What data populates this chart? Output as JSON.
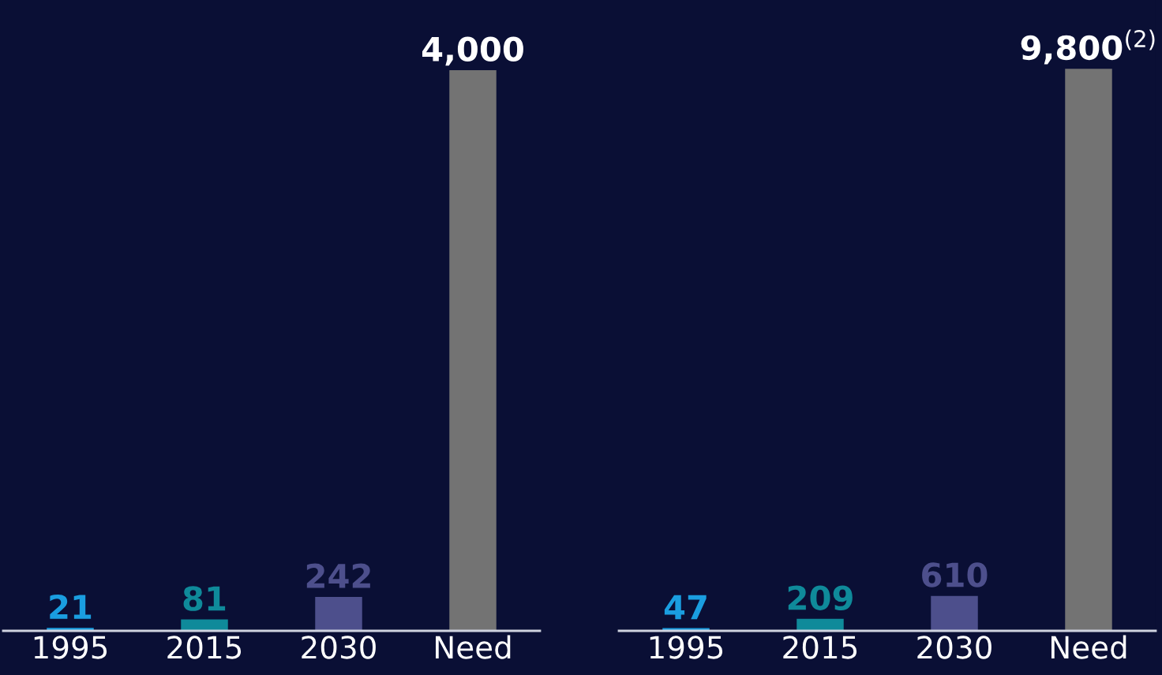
{
  "chart_data": [
    {
      "type": "bar",
      "categories": [
        "1995",
        "2015",
        "2030",
        "Need"
      ],
      "values": [
        21,
        81,
        242,
        4000
      ],
      "colors": [
        "#1a9ee0",
        "#0f8a9a",
        "#4d4f8c",
        "#737373"
      ],
      "value_labels": [
        "21",
        "81",
        "242",
        "4,000"
      ],
      "ylim": [
        0,
        4500
      ]
    },
    {
      "type": "bar",
      "categories": [
        "1995",
        "2015",
        "2030",
        "Need"
      ],
      "values": [
        47,
        209,
        610,
        9800
      ],
      "colors": [
        "#1a9ee0",
        "#0f8a9a",
        "#4d4f8c",
        "#737373"
      ],
      "value_labels": [
        "47",
        "209",
        "610",
        "9,800$^{(2)}$"
      ],
      "ylim": [
        0,
        11000
      ]
    }
  ]
}
